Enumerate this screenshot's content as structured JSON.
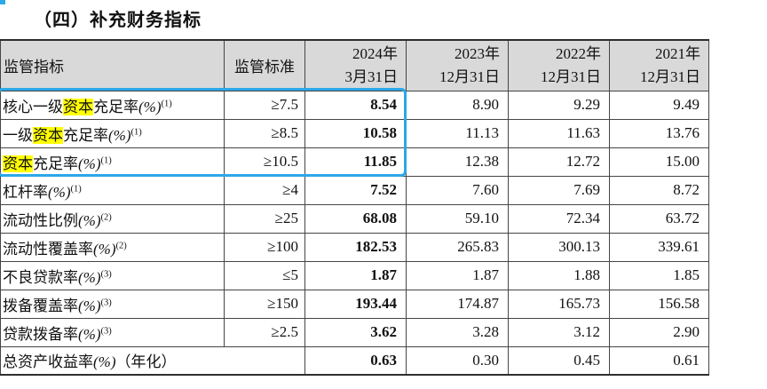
{
  "page": {
    "title": "（四）补充财务指标"
  },
  "annotation": {
    "selection_color": "#2ba8e8",
    "highlight_color": "#ffff00",
    "highlighted_term": "资本"
  },
  "table": {
    "header": {
      "indicator": "监管指标",
      "standard": "监管标准",
      "periods": [
        [
          "2024年",
          "3月31日"
        ],
        [
          "2023年",
          "12月31日"
        ],
        [
          "2022年",
          "12月31日"
        ],
        [
          "2021年",
          "12月31日"
        ]
      ]
    },
    "rows": [
      {
        "segments": [
          {
            "t": "核心一级"
          },
          {
            "t": "资本",
            "hl": true
          },
          {
            "t": "充足率"
          },
          {
            "t": "(%)",
            "it": true
          },
          {
            "t": "(1)",
            "sup": true
          }
        ],
        "standard": "≥7.5",
        "values": [
          "8.54",
          "8.90",
          "9.29",
          "9.49"
        ]
      },
      {
        "segments": [
          {
            "t": "一级"
          },
          {
            "t": "资本",
            "hl": true
          },
          {
            "t": "充足率"
          },
          {
            "t": "(%)",
            "it": true
          },
          {
            "t": "(1)",
            "sup": true
          }
        ],
        "standard": "≥8.5",
        "values": [
          "10.58",
          "11.13",
          "11.63",
          "13.76"
        ]
      },
      {
        "segments": [
          {
            "t": "资本",
            "hl": true
          },
          {
            "t": "充足率"
          },
          {
            "t": "(%)",
            "it": true
          },
          {
            "t": "(1)",
            "sup": true
          }
        ],
        "standard": "≥10.5",
        "values": [
          "11.85",
          "12.38",
          "12.72",
          "15.00"
        ]
      },
      {
        "segments": [
          {
            "t": "杠杆率"
          },
          {
            "t": "(%)",
            "it": true
          },
          {
            "t": "(1)",
            "sup": true
          }
        ],
        "standard": "≥4",
        "values": [
          "7.52",
          "7.60",
          "7.69",
          "8.72"
        ]
      },
      {
        "segments": [
          {
            "t": "流动性比例"
          },
          {
            "t": "(%)",
            "it": true
          },
          {
            "t": "(2)",
            "sup": true
          }
        ],
        "standard": "≥25",
        "values": [
          "68.08",
          "59.10",
          "72.34",
          "63.72"
        ]
      },
      {
        "segments": [
          {
            "t": "流动性覆盖率"
          },
          {
            "t": "(%)",
            "it": true
          },
          {
            "t": "(2)",
            "sup": true
          }
        ],
        "standard": "≥100",
        "values": [
          "182.53",
          "265.83",
          "300.13",
          "339.61"
        ]
      },
      {
        "segments": [
          {
            "t": "不良贷款率"
          },
          {
            "t": "(%)",
            "it": true
          },
          {
            "t": "(3)",
            "sup": true
          }
        ],
        "standard": "≤5",
        "values": [
          "1.87",
          "1.87",
          "1.88",
          "1.85"
        ]
      },
      {
        "segments": [
          {
            "t": "拨备覆盖率"
          },
          {
            "t": "(%)",
            "it": true
          },
          {
            "t": "(3)",
            "sup": true
          }
        ],
        "standard": "≥150",
        "values": [
          "193.44",
          "174.87",
          "165.73",
          "156.58"
        ]
      },
      {
        "segments": [
          {
            "t": "贷款拨备率"
          },
          {
            "t": "(%)",
            "it": true
          },
          {
            "t": "(3)",
            "sup": true
          }
        ],
        "standard": "≥2.5",
        "values": [
          "3.62",
          "3.28",
          "3.12",
          "2.90"
        ]
      },
      {
        "segments": [
          {
            "t": "总资产收益率"
          },
          {
            "t": "(%)",
            "it": true
          },
          {
            "t": "（年化）"
          }
        ],
        "standard": null,
        "values": [
          "0.63",
          "0.30",
          "0.45",
          "0.61"
        ]
      }
    ]
  }
}
